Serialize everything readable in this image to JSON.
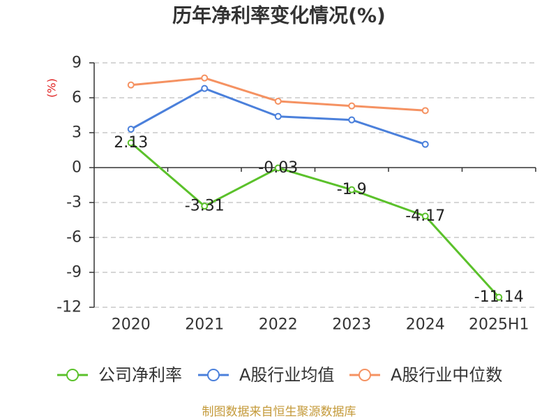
{
  "chart_data": {
    "type": "line",
    "title": "历年净利率变化情况(%)",
    "ylabel": "(%)",
    "categories": [
      "2020",
      "2021",
      "2022",
      "2023",
      "2024",
      "2025H1"
    ],
    "ylim": [
      -12,
      9
    ],
    "yticks": [
      9,
      6,
      3,
      0,
      -3,
      -6,
      -9,
      -12
    ],
    "grid": true,
    "legend_position": "bottom",
    "series": [
      {
        "name": "公司净利率",
        "color": "#5bc12b",
        "values": [
          2.13,
          -3.31,
          -0.03,
          -1.9,
          -4.17,
          -11.14
        ],
        "data_labels": true
      },
      {
        "name": "A股行业均值",
        "color": "#4b80db",
        "values": [
          3.3,
          6.8,
          4.4,
          4.1,
          2.0,
          null
        ],
        "data_labels": false
      },
      {
        "name": "A股行业中位数",
        "color": "#f59262",
        "values": [
          7.1,
          7.7,
          5.7,
          5.3,
          4.9,
          null
        ],
        "data_labels": false
      }
    ]
  },
  "source_note": "制图数据来自恒生聚源数据库",
  "colors": {
    "title": "#333333",
    "ylabel": "#e02020",
    "source_note": "#c49a3a",
    "axis": "#333333",
    "grid": "#c8c8c8"
  }
}
